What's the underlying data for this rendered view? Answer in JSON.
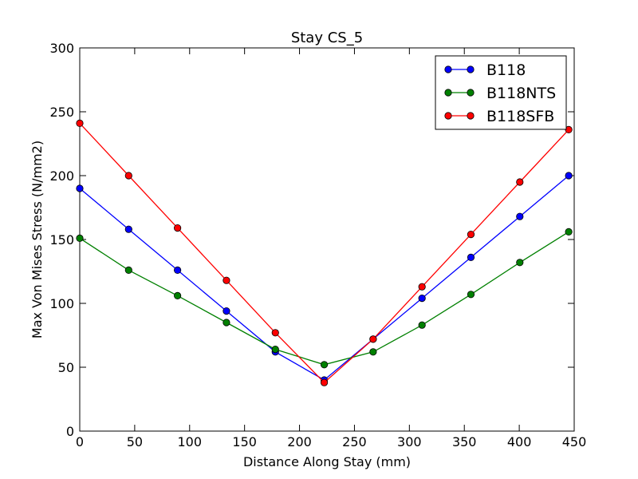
{
  "chart_data": {
    "type": "line",
    "title": "Stay CS_5",
    "xlabel": "Distance Along Stay (mm)",
    "ylabel": "Max Von Mises Stress (N/mm2)",
    "xlim": [
      0,
      450
    ],
    "ylim": [
      0,
      300
    ],
    "xticks": [
      0,
      50,
      100,
      150,
      200,
      250,
      300,
      350,
      400,
      450
    ],
    "yticks": [
      0,
      50,
      100,
      150,
      200,
      250,
      300
    ],
    "grid": false,
    "legend_position": "top-right",
    "x": [
      0,
      44.5,
      89,
      133.5,
      178,
      222.5,
      267,
      311.5,
      356,
      400.5,
      445
    ],
    "series": [
      {
        "name": "B118",
        "color": "#0000ff",
        "values": [
          190,
          158,
          126,
          94,
          62,
          40,
          72,
          104,
          136,
          168,
          200
        ]
      },
      {
        "name": "B118NTS",
        "color": "#008000",
        "values": [
          151,
          126,
          106,
          85,
          64,
          52,
          62,
          83,
          107,
          132,
          156
        ]
      },
      {
        "name": "B118SFB",
        "color": "#ff0000",
        "values": [
          241,
          200,
          159,
          118,
          77,
          38,
          72,
          113,
          154,
          195,
          236
        ]
      }
    ]
  }
}
